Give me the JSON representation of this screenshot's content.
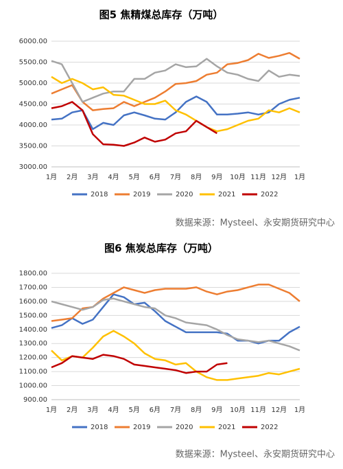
{
  "chart_data": [
    {
      "type": "line",
      "title": "图5 焦精煤总库存（万吨）",
      "source": "数据来源：Mysteel、永安期货研究中心",
      "categories": [
        "1月",
        null,
        "2月",
        null,
        "3月",
        null,
        "4月",
        null,
        "5月",
        null,
        "6月",
        null,
        "7月",
        null,
        "8月",
        null,
        "9月",
        null,
        "10月",
        null,
        "11月",
        null,
        "12月",
        null,
        "1月"
      ],
      "ylim": [
        3000,
        6000
      ],
      "yticks": [
        {
          "value": 3000,
          "label": "3000.00"
        },
        {
          "value": 3500,
          "label": "3500.00"
        },
        {
          "value": 4000,
          "label": "4000.00"
        },
        {
          "value": 4500,
          "label": "4500.00"
        },
        {
          "value": 5000,
          "label": "5000.00"
        },
        {
          "value": 5500,
          "label": "5500.00"
        },
        {
          "value": 6000,
          "label": "6000.00"
        }
      ],
      "grid": true,
      "series": [
        {
          "name": "2018",
          "color": "#4472c4",
          "values": [
            4130,
            4150,
            4300,
            4350,
            3900,
            4050,
            4000,
            4230,
            4300,
            4230,
            4150,
            4130,
            4300,
            4550,
            4680,
            4550,
            4250,
            4250,
            4270,
            4300,
            4250,
            4300,
            4500,
            4600,
            4650
          ]
        },
        {
          "name": "2019",
          "color": "#ed7d31",
          "values": [
            4750,
            4850,
            4950,
            4550,
            4350,
            4380,
            4400,
            4550,
            4450,
            4550,
            4650,
            4800,
            4980,
            5000,
            5050,
            5200,
            5250,
            5450,
            5480,
            5550,
            5700,
            5600,
            5650,
            5720,
            5580
          ]
        },
        {
          "name": "2020",
          "color": "#a5a5a5",
          "values": [
            5530,
            5450,
            5000,
            4550,
            4650,
            4750,
            4800,
            4800,
            5100,
            5100,
            5250,
            5300,
            5450,
            5380,
            5400,
            5580,
            5400,
            5250,
            5200,
            5100,
            5050,
            5300,
            5150,
            5200,
            5170
          ]
        },
        {
          "name": "2021",
          "color": "#ffc000",
          "values": [
            5150,
            5000,
            5100,
            5000,
            4850,
            4900,
            4720,
            4700,
            4600,
            4500,
            4500,
            4580,
            4350,
            4250,
            4100,
            3950,
            3850,
            3900,
            4000,
            4100,
            4150,
            4350,
            4300,
            4400,
            4300
          ]
        },
        {
          "name": "2022",
          "color": "#c00000",
          "values": [
            4400,
            4450,
            4550,
            4350,
            3780,
            3540,
            3530,
            3500,
            3580,
            3700,
            3600,
            3650,
            3800,
            3850,
            4100,
            3950,
            3800,
            null,
            null,
            null,
            null,
            null,
            null,
            null,
            null
          ]
        }
      ]
    },
    {
      "type": "line",
      "title": "图6 焦炭总库存（万吨）",
      "source": "数据来源：Mysteel、永安期货研究中心",
      "categories": [
        "1月",
        null,
        "2月",
        null,
        "3月",
        null,
        "4月",
        null,
        "5月",
        null,
        "6月",
        null,
        "7月",
        null,
        "8月",
        null,
        "9月",
        null,
        "10月",
        null,
        "11月",
        null,
        "12月",
        null,
        "1月"
      ],
      "ylim": [
        900,
        1800
      ],
      "yticks": [
        {
          "value": 900,
          "label": "900.00"
        },
        {
          "value": 1000,
          "label": "1000.00"
        },
        {
          "value": 1100,
          "label": "1100.00"
        },
        {
          "value": 1200,
          "label": "1200.00"
        },
        {
          "value": 1300,
          "label": "1300.00"
        },
        {
          "value": 1400,
          "label": "1400.00"
        },
        {
          "value": 1500,
          "label": "1500.00"
        },
        {
          "value": 1600,
          "label": "1600.00"
        },
        {
          "value": 1700,
          "label": "1700.00"
        },
        {
          "value": 1800,
          "label": "1800.00"
        }
      ],
      "grid": true,
      "series": [
        {
          "name": "2018",
          "color": "#4472c4",
          "values": [
            1410,
            1430,
            1480,
            1440,
            1470,
            1560,
            1650,
            1630,
            1580,
            1590,
            1530,
            1460,
            1420,
            1380,
            1380,
            1380,
            1380,
            1370,
            1320,
            1320,
            1300,
            1320,
            1320,
            1380,
            1420
          ]
        },
        {
          "name": "2019",
          "color": "#ed7d31",
          "values": [
            1460,
            1470,
            1480,
            1550,
            1560,
            1620,
            1660,
            1700,
            1680,
            1660,
            1680,
            1690,
            1690,
            1690,
            1700,
            1670,
            1650,
            1670,
            1680,
            1700,
            1720,
            1720,
            1690,
            1660,
            1600
          ]
        },
        {
          "name": "2020",
          "color": "#a5a5a5",
          "values": [
            1600,
            1580,
            1560,
            1540,
            1560,
            1610,
            1620,
            1600,
            1580,
            1560,
            1550,
            1500,
            1480,
            1450,
            1440,
            1430,
            1400,
            1360,
            1330,
            1320,
            1310,
            1320,
            1300,
            1280,
            1250
          ]
        },
        {
          "name": "2021",
          "color": "#ffc000",
          "values": [
            1250,
            1180,
            1210,
            1200,
            1270,
            1350,
            1390,
            1350,
            1300,
            1230,
            1190,
            1180,
            1150,
            1160,
            1100,
            1060,
            1040,
            1040,
            1050,
            1060,
            1070,
            1090,
            1080,
            1100,
            1120
          ]
        },
        {
          "name": "2022",
          "color": "#c00000",
          "values": [
            1130,
            1160,
            1210,
            1200,
            1190,
            1220,
            1210,
            1190,
            1150,
            1140,
            1130,
            1120,
            1110,
            1090,
            1100,
            1100,
            1150,
            1160,
            null,
            null,
            null,
            null,
            null,
            null,
            null
          ]
        }
      ]
    }
  ]
}
